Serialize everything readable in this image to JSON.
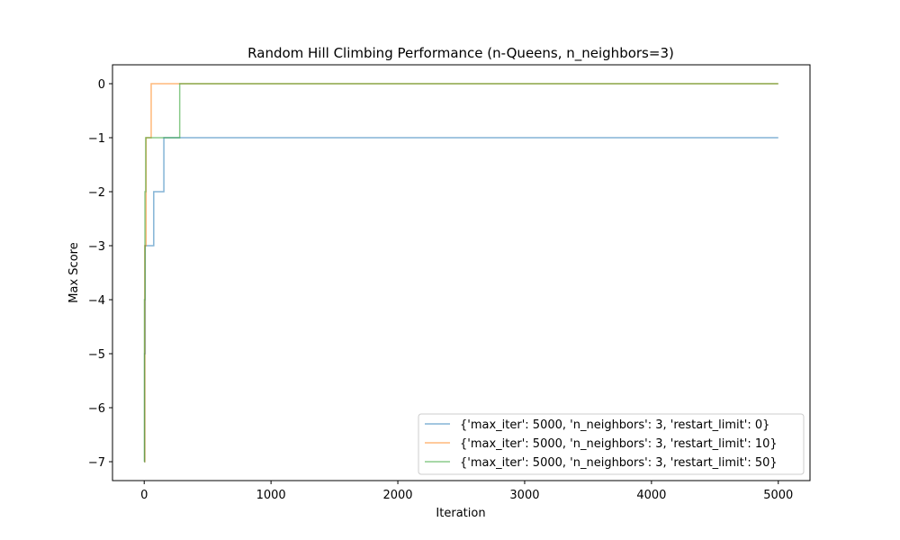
{
  "chart_data": {
    "type": "line",
    "title": "Random Hill Climbing Performance (n-Queens, n_neighbors=3)",
    "xlabel": "Iteration",
    "ylabel": "Max Score",
    "xlim": [
      -250,
      5250
    ],
    "ylim": [
      -7.35,
      0.35
    ],
    "xticks": [
      0,
      1000,
      2000,
      3000,
      4000,
      5000
    ],
    "xtick_labels": [
      "0",
      "1000",
      "2000",
      "3000",
      "4000",
      "5000"
    ],
    "yticks": [
      0,
      -1,
      -2,
      -3,
      -4,
      -5,
      -6,
      -7
    ],
    "ytick_labels": [
      "0",
      "−1",
      "−2",
      "−3",
      "−4",
      "−5",
      "−6",
      "−7"
    ],
    "grid": false,
    "legend_position": "lower-right",
    "series": [
      {
        "name": "{'max_iter': 5000, 'n_neighbors': 3, 'restart_limit': 0}",
        "color": "#1f77b4",
        "step": "post",
        "x": [
          0,
          3,
          8,
          75,
          155,
          5000
        ],
        "y": [
          -7,
          -5,
          -3,
          -2,
          -1,
          -1
        ]
      },
      {
        "name": "{'max_iter': 5000, 'n_neighbors': 3, 'restart_limit': 10}",
        "color": "#ff7f0e",
        "step": "post",
        "x": [
          0,
          5,
          15,
          55,
          5000
        ],
        "y": [
          -7,
          -3,
          -1,
          0,
          0
        ]
      },
      {
        "name": "{'max_iter': 5000, 'n_neighbors': 3, 'restart_limit': 50}",
        "color": "#2ca02c",
        "step": "post",
        "x": [
          0,
          2,
          6,
          12,
          280,
          5000
        ],
        "y": [
          -7,
          -4,
          -2,
          -1,
          0,
          0
        ]
      }
    ]
  }
}
